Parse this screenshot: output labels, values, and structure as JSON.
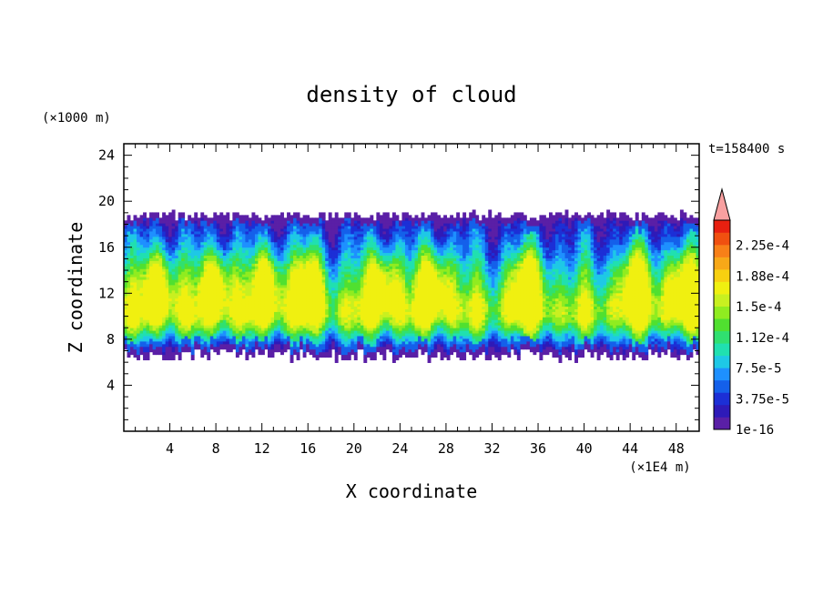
{
  "chart_data": {
    "type": "heatmap",
    "title": "density of cloud",
    "xlabel": "X coordinate",
    "ylabel": "Z coordinate",
    "x_unit": "(×1E4 m)",
    "y_unit": "(×1000 m)",
    "time_label": "t=158400 s",
    "xlim": [
      0,
      50
    ],
    "ylim": [
      0,
      25
    ],
    "x_ticks": [
      "4",
      "8",
      "12",
      "16",
      "20",
      "24",
      "28",
      "32",
      "36",
      "40",
      "44",
      "48"
    ],
    "y_ticks": [
      "4",
      "8",
      "12",
      "16",
      "20",
      "24"
    ],
    "cloud_layer": {
      "base_km": 6,
      "top_km": 19,
      "core_km": [
        10,
        17
      ]
    },
    "colorbar": {
      "labels": [
        "1e-16",
        "3.75e-5",
        "7.5e-5",
        "1.12e-4",
        "1.5e-4",
        "1.88e-4",
        "2.25e-4"
      ],
      "colors": [
        "#5a1fa6",
        "#2e1ab8",
        "#1c2fd6",
        "#1460ea",
        "#1e90ff",
        "#1ec8e6",
        "#20e0b0",
        "#30e070",
        "#50e030",
        "#90ec20",
        "#c8f020",
        "#f0f010",
        "#f8d010",
        "#f8a818",
        "#f88018",
        "#f05010",
        "#e82010"
      ],
      "extend_color": "#f8a0a0"
    }
  }
}
